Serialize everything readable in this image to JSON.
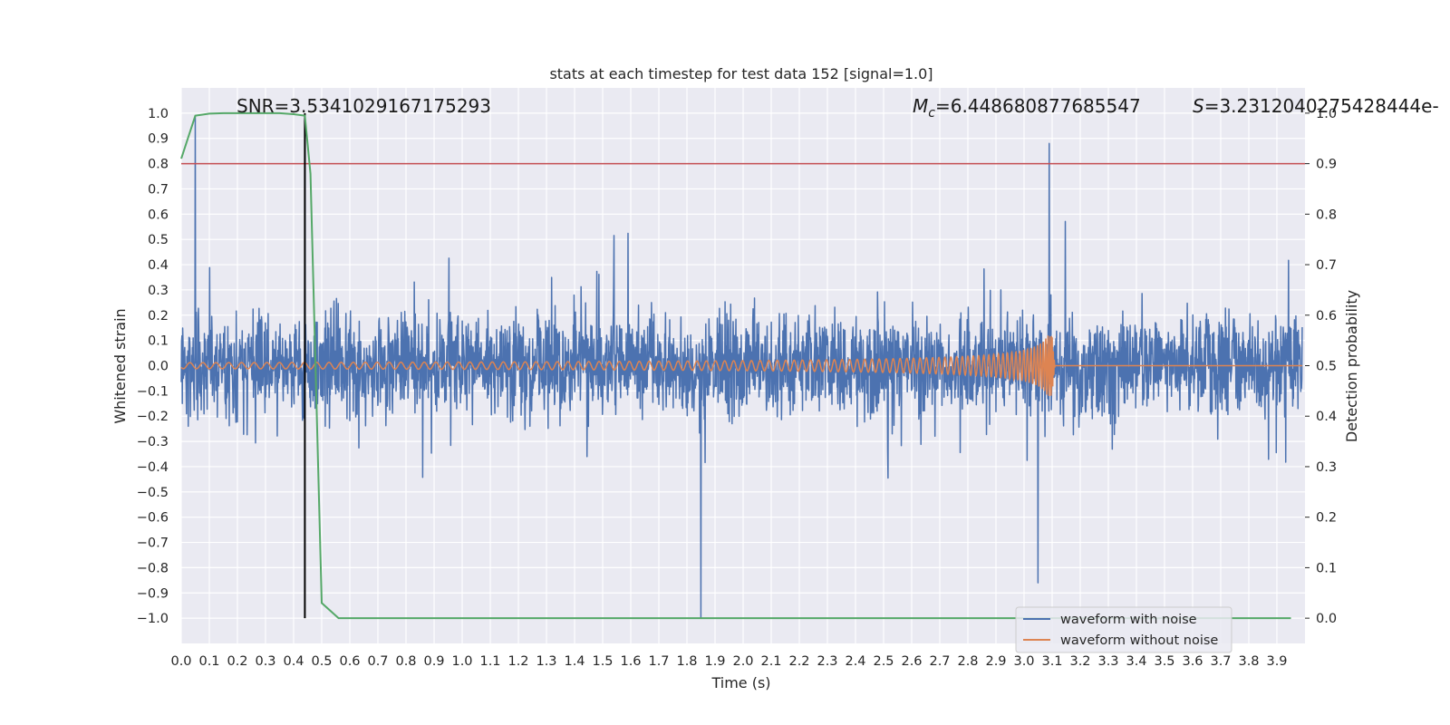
{
  "chart_data": {
    "type": "line",
    "title": "stats at each timestep for test data 152 [signal=1.0]",
    "xlabel": "Time (s)",
    "ylabel": "Whitened strain",
    "ylabel_right": "Detection probability",
    "xlim": [
      0.0,
      4.0
    ],
    "ylim": [
      -1.1,
      1.1
    ],
    "ylim_right": [
      -0.05,
      1.05
    ],
    "x_ticks": [
      "0.0",
      "0.1",
      "0.2",
      "0.3",
      "0.4",
      "0.5",
      "0.6",
      "0.7",
      "0.8",
      "0.9",
      "1.0",
      "1.1",
      "1.2",
      "1.3",
      "1.4",
      "1.5",
      "1.6",
      "1.7",
      "1.8",
      "1.9",
      "2.0",
      "2.1",
      "2.2",
      "2.3",
      "2.4",
      "2.5",
      "2.6",
      "2.7",
      "2.8",
      "2.9",
      "3.0",
      "3.1",
      "3.2",
      "3.3",
      "3.4",
      "3.5",
      "3.6",
      "3.7",
      "3.8",
      "3.9"
    ],
    "y_ticks": [
      "1.0",
      "0.9",
      "0.8",
      "0.7",
      "0.6",
      "0.5",
      "0.4",
      "0.3",
      "0.2",
      "0.1",
      "0.0",
      "−0.1",
      "−0.2",
      "−0.3",
      "−0.4",
      "−0.5",
      "−0.6",
      "−0.7",
      "−0.8",
      "−0.9",
      "−1.0"
    ],
    "y_ticks_right": [
      "1.0",
      "0.9",
      "0.8",
      "0.7",
      "0.6",
      "0.5",
      "0.4",
      "0.3",
      "0.2",
      "0.1",
      "0.0"
    ],
    "annotations": {
      "snr": "SNR=3.5341029167175293",
      "mc_symbol": "M",
      "mc_sub": "c",
      "mc_value": "=6.448680877685547",
      "s_symbol": "S",
      "s_value": "=3.2312040275428444e-"
    },
    "grid": true,
    "legend_position": "lower-right",
    "series": [
      {
        "name": "waveform with noise",
        "color": "#4c72b0",
        "description": "dense noisy strain signal oscillating roughly between -0.6 and 0.6 with spikes reaching ~0.99 near t=0.05 and -1.0 near t=1.85",
        "notable_points": [
          [
            0.05,
            0.99
          ],
          [
            0.44,
            0.95
          ],
          [
            1.85,
            -1.0
          ],
          [
            3.09,
            0.88
          ],
          [
            3.05,
            -0.86
          ]
        ]
      },
      {
        "name": "waveform without noise",
        "color": "#dd8452",
        "description": "chirp signal with slowly growing amplitude up to ~0.07 before merger near t=3.1",
        "amplitude_start": 0.012,
        "amplitude_peak": 0.12,
        "merger_time": 3.1
      },
      {
        "color": "#55a868",
        "axis": "right",
        "x": [
          0.0,
          0.05,
          0.1,
          0.15,
          0.2,
          0.25,
          0.3,
          0.35,
          0.4,
          0.44,
          0.46,
          0.5,
          0.56,
          1.0,
          2.0,
          3.0,
          3.95
        ],
        "values": [
          0.91,
          0.995,
          0.999,
          1.0,
          1.0,
          1.0,
          1.0,
          1.0,
          0.998,
          0.995,
          0.88,
          0.03,
          0.0,
          0.0,
          0.0,
          0.0,
          0.0
        ]
      }
    ],
    "reference_lines": [
      {
        "axis": "right",
        "orientation": "horizontal",
        "value": 0.9,
        "color": "#c44e52"
      },
      {
        "axis": "x",
        "orientation": "vertical",
        "value": 0.44,
        "y_range": [
          -1.0,
          1.0
        ],
        "color": "#000000"
      }
    ]
  }
}
